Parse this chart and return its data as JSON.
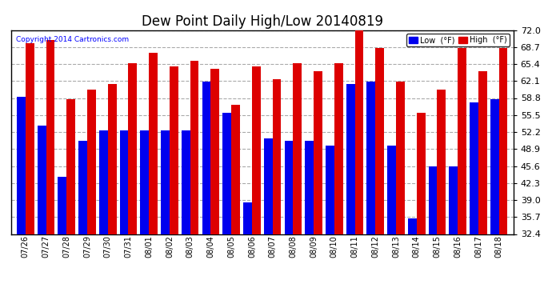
{
  "title": "Dew Point Daily High/Low 20140819",
  "copyright": "Copyright 2014 Cartronics.com",
  "dates": [
    "07/26",
    "07/27",
    "07/28",
    "07/29",
    "07/30",
    "07/31",
    "08/01",
    "08/02",
    "08/03",
    "08/04",
    "08/05",
    "08/06",
    "08/07",
    "08/08",
    "08/09",
    "08/10",
    "08/11",
    "08/12",
    "08/13",
    "08/14",
    "08/15",
    "08/16",
    "08/17",
    "08/18"
  ],
  "low": [
    59.0,
    53.5,
    43.5,
    50.5,
    52.5,
    52.5,
    52.5,
    52.5,
    52.5,
    62.0,
    56.0,
    38.5,
    51.0,
    50.5,
    50.5,
    49.5,
    61.5,
    62.0,
    49.5,
    35.5,
    45.5,
    45.5,
    58.0,
    58.5
  ],
  "high": [
    69.5,
    70.0,
    58.5,
    60.5,
    61.5,
    65.5,
    67.5,
    65.0,
    66.0,
    64.5,
    57.5,
    65.0,
    62.5,
    65.5,
    64.0,
    65.5,
    72.0,
    68.5,
    62.0,
    56.0,
    60.5,
    68.5,
    64.0,
    68.5
  ],
  "ylim": [
    32.4,
    72.0
  ],
  "yticks": [
    32.4,
    35.7,
    39.0,
    42.3,
    45.6,
    48.9,
    52.2,
    55.5,
    58.8,
    62.1,
    65.4,
    68.7,
    72.0
  ],
  "low_color": "#0000ee",
  "high_color": "#dd0000",
  "bg_color": "#ffffff",
  "grid_color": "#aaaaaa",
  "title_fontsize": 12,
  "legend_low_label": "Low  (°F)",
  "legend_high_label": "High  (°F)"
}
